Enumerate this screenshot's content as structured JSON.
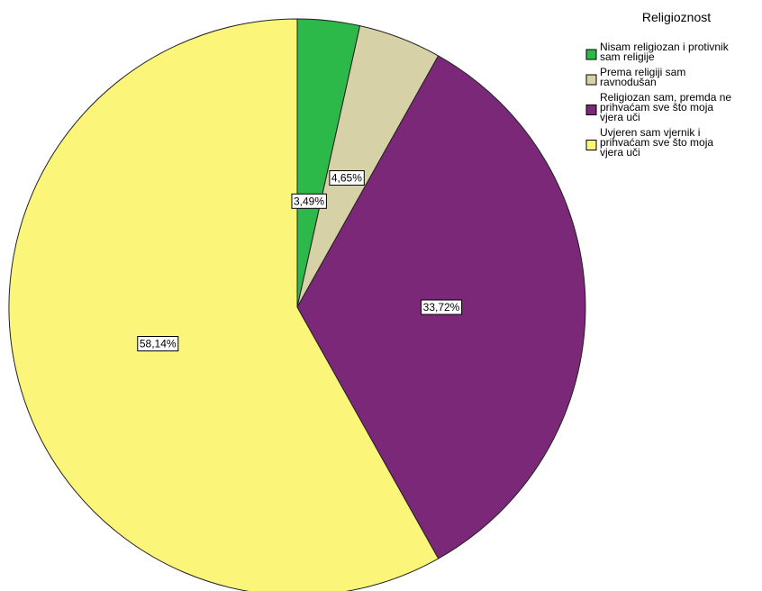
{
  "chart_data": {
    "type": "pie",
    "legend_title": "Religioznost",
    "legend_position": "top-right",
    "start_angle": "12 o'clock, clockwise",
    "slices": [
      {
        "category": "Nisam religiozan i protivnik sam religije",
        "legend_lines": [
          "Nisam religiozan i protivnik",
          "sam religije"
        ],
        "value": 3.49,
        "label": "3,49%",
        "color": "#2db84a"
      },
      {
        "category": "Prema religiji sam ravnodušan",
        "legend_lines": [
          "Prema religiji sam",
          "ravnodušan"
        ],
        "value": 4.65,
        "label": "4,65%",
        "color": "#d6d1a6"
      },
      {
        "category": "Religiozan sam, premda ne prihvaćam sve što moja vjera uči",
        "legend_lines": [
          "Religiozan sam, premda ne",
          "prihvaćam sve što moja",
          "vjera uči"
        ],
        "value": 33.72,
        "label": "33,72%",
        "color": "#7b2879"
      },
      {
        "category": "Uvjeren sam vjernik i prihvaćam sve što moja vjera uči",
        "legend_lines": [
          "Uvjeren sam vjernik i",
          "prihvaćam sve što moja",
          "vjera uči"
        ],
        "value": 58.14,
        "label": "58,14%",
        "color": "#fbf57a"
      }
    ]
  }
}
